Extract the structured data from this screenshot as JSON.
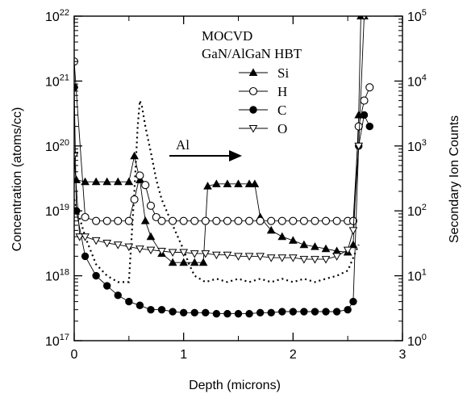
{
  "chart_data": {
    "type": "line",
    "xlabel": "Depth (microns)",
    "ylabel": "Concentration (atoms/cc)",
    "y2label": "Secondary Ion Counts",
    "xlim": [
      0,
      3
    ],
    "ylim": [
      1e+17,
      1e+22
    ],
    "y2lim": [
      1,
      100000
    ],
    "yscale": "log",
    "grid": false,
    "x_ticks": [
      "0",
      "1",
      "2",
      "3"
    ],
    "y_ticks": [
      {
        "base": "10",
        "exp": "17"
      },
      {
        "base": "10",
        "exp": "18"
      },
      {
        "base": "10",
        "exp": "19"
      },
      {
        "base": "10",
        "exp": "20"
      },
      {
        "base": "10",
        "exp": "21"
      },
      {
        "base": "10",
        "exp": "22"
      }
    ],
    "y2_ticks": [
      {
        "base": "10",
        "exp": "0"
      },
      {
        "base": "10",
        "exp": "1"
      },
      {
        "base": "10",
        "exp": "2"
      },
      {
        "base": "10",
        "exp": "3"
      },
      {
        "base": "10",
        "exp": "4"
      },
      {
        "base": "10",
        "exp": "5"
      }
    ],
    "annotations": {
      "title_line1": "MOCVD",
      "title_line2": "GaN/AlGaN HBT",
      "arrow_label": "Al"
    },
    "legend_position": "top-right",
    "series": [
      {
        "name": "Si",
        "axis": "left",
        "marker": "filled-triangle",
        "x": [
          0.02,
          0.1,
          0.2,
          0.3,
          0.4,
          0.5,
          0.55,
          0.6,
          0.65,
          0.7,
          0.8,
          0.9,
          1.0,
          1.1,
          1.18,
          1.22,
          1.3,
          1.4,
          1.5,
          1.6,
          1.65,
          1.7,
          1.8,
          1.9,
          2.0,
          2.1,
          2.2,
          2.3,
          2.4,
          2.5,
          2.55,
          2.6,
          2.62,
          2.65
        ],
        "y": [
          3e+19,
          2.8e+19,
          2.8e+19,
          2.8e+19,
          2.8e+19,
          2.8e+19,
          7e+19,
          3e+19,
          7e+18,
          4e+18,
          2.2e+18,
          1.6e+18,
          1.6e+18,
          1.6e+18,
          1.6e+18,
          2.4e+19,
          2.6e+19,
          2.6e+19,
          2.6e+19,
          2.6e+19,
          2.6e+19,
          8e+18,
          5e+18,
          4e+18,
          3.5e+18,
          3e+18,
          2.8e+18,
          2.6e+18,
          2.4e+18,
          2.3e+18,
          3e+18,
          3e+20,
          1e+22,
          1e+22
        ]
      },
      {
        "name": "H",
        "axis": "left",
        "marker": "open-circle",
        "x": [
          0.0,
          0.1,
          0.2,
          0.3,
          0.4,
          0.5,
          0.55,
          0.6,
          0.65,
          0.7,
          0.75,
          0.8,
          0.9,
          1.0,
          1.1,
          1.2,
          1.3,
          1.4,
          1.5,
          1.6,
          1.7,
          1.8,
          1.9,
          2.0,
          2.1,
          2.2,
          2.3,
          2.4,
          2.5,
          2.55,
          2.6,
          2.65,
          2.7
        ],
        "y": [
          2e+21,
          8e+18,
          7e+18,
          7e+18,
          7e+18,
          7e+18,
          1.5e+19,
          3.5e+19,
          2.5e+19,
          1.2e+19,
          8e+18,
          7e+18,
          7e+18,
          7e+18,
          7e+18,
          7e+18,
          7e+18,
          7e+18,
          7e+18,
          7e+18,
          7e+18,
          7e+18,
          7e+18,
          7e+18,
          7e+18,
          7e+18,
          7e+18,
          7e+18,
          7e+18,
          7e+18,
          2e+20,
          5e+20,
          8e+20
        ]
      },
      {
        "name": "C",
        "axis": "left",
        "marker": "filled-circle",
        "x": [
          0.0,
          0.02,
          0.1,
          0.2,
          0.3,
          0.4,
          0.5,
          0.6,
          0.7,
          0.8,
          0.9,
          1.0,
          1.1,
          1.2,
          1.3,
          1.4,
          1.5,
          1.6,
          1.7,
          1.8,
          1.9,
          2.0,
          2.1,
          2.2,
          2.3,
          2.4,
          2.5,
          2.55,
          2.6,
          2.65,
          2.7
        ],
        "y": [
          8e+20,
          1e+19,
          2e+18,
          1e+18,
          7e+17,
          5e+17,
          4e+17,
          3.5e+17,
          3e+17,
          3e+17,
          2.8e+17,
          2.7e+17,
          2.7e+17,
          2.7e+17,
          2.6e+17,
          2.6e+17,
          2.6e+17,
          2.6e+17,
          2.7e+17,
          2.7e+17,
          2.8e+17,
          2.8e+17,
          2.8e+17,
          2.8e+17,
          2.8e+17,
          2.8e+17,
          3e+17,
          4e+17,
          1e+20,
          3e+20,
          2e+20
        ]
      },
      {
        "name": "O",
        "axis": "left",
        "marker": "open-triangle-down",
        "x": [
          0.0,
          0.05,
          0.1,
          0.2,
          0.3,
          0.4,
          0.5,
          0.6,
          0.7,
          0.8,
          0.9,
          1.0,
          1.1,
          1.2,
          1.3,
          1.4,
          1.5,
          1.6,
          1.7,
          1.8,
          1.9,
          2.0,
          2.1,
          2.2,
          2.3,
          2.4,
          2.5,
          2.55,
          2.6,
          2.65
        ],
        "y": [
          7e+19,
          4e+18,
          4e+18,
          3.5e+18,
          3.2e+18,
          3e+18,
          2.8e+18,
          2.6e+18,
          2.5e+18,
          2.4e+18,
          2.3e+18,
          2.3e+18,
          2.2e+18,
          2.2e+18,
          2.1e+18,
          2.1e+18,
          2e+18,
          2e+18,
          2e+18,
          1.9e+18,
          1.9e+18,
          1.9e+18,
          1.8e+18,
          1.8e+18,
          1.8e+18,
          2e+18,
          2.5e+18,
          5e+18,
          1e+20,
          1e+22
        ]
      },
      {
        "axis": "right",
        "style": "dotted",
        "x": [
          0.0,
          0.1,
          0.2,
          0.3,
          0.4,
          0.5,
          0.55,
          0.58,
          0.6,
          0.62,
          0.65,
          0.7,
          0.75,
          0.8,
          0.9,
          1.0,
          1.05,
          1.1,
          1.2,
          1.3,
          1.4,
          1.5,
          1.6,
          1.7,
          1.8,
          1.9,
          2.0,
          2.1,
          2.2,
          2.3,
          2.4,
          2.5,
          2.6
        ],
        "y": [
          150,
          40,
          15,
          10,
          8,
          8,
          200,
          2000,
          5000,
          4000,
          2000,
          800,
          300,
          150,
          60,
          25,
          15,
          10,
          8,
          9,
          8,
          9,
          8,
          9,
          8,
          9,
          8,
          9,
          8,
          9,
          10,
          12,
          30
        ]
      }
    ]
  }
}
